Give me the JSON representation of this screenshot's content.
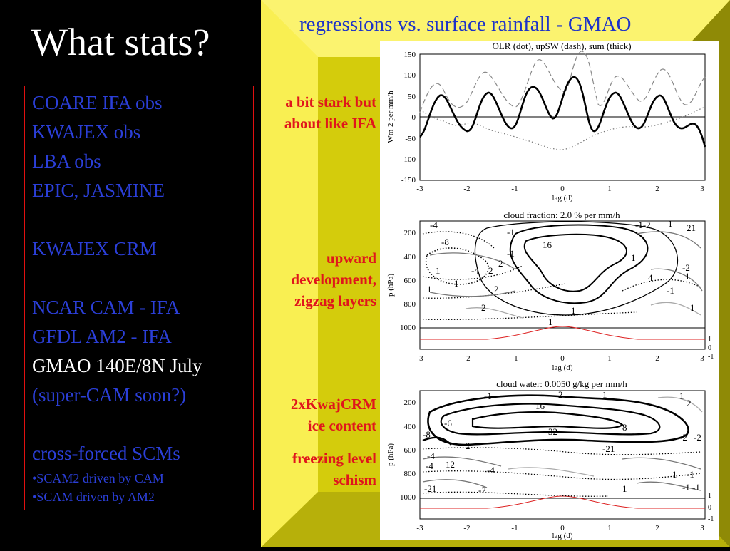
{
  "slide": {
    "title": "What stats?",
    "list": [
      "COARE  IFA obs",
      "KWAJEX obs",
      "LBA obs",
      "EPIC, JASMINE",
      "KWAJEX CRM",
      "NCAR CAM - IFA",
      "GFDL AM2 - IFA",
      "GMAO 140E/8N July",
      "(super-CAM soon?)",
      "cross-forced SCMs",
      "•SCAM2 driven by CAM",
      "•SCAM driven by AM2"
    ],
    "right_title": "regressions vs. surface rainfall - GMAO",
    "notes": {
      "n1_line1": "a bit stark but",
      "n1_line2": "about like IFA",
      "n2_line1": "upward",
      "n2_line2": "development,",
      "n2_line3": "zigzag layers",
      "n3_line1": "2xKwajCRM",
      "n3_line2": "ice content",
      "n4_line1": "freezing level",
      "n4_line2": "schism"
    },
    "colors": {
      "blue_text": "#2b3fd8",
      "red_text": "#e0151c",
      "frame_yellow": "#f6ea3c",
      "frame_olive": "#8f8a06"
    }
  },
  "plots": {
    "p1": {
      "title": "OLR (dot), upSW (dash), sum (thick)",
      "ylabel": "Wm-2 per mm/h",
      "xlabel": "lag (d)",
      "yticks": [
        "150",
        "100",
        "50",
        "0",
        "-50",
        "-100",
        "-150"
      ],
      "xticks": [
        "-3",
        "-2",
        "-1",
        "0",
        "1",
        "2",
        "3"
      ]
    },
    "p2": {
      "title": "cloud fraction: 2.0 % per mm/h",
      "ylabel": "p (hPa)",
      "xlabel": "lag (d)",
      "yticks": [
        "200",
        "400",
        "600",
        "800",
        "1000"
      ],
      "xticks": [
        "-3",
        "-2",
        "-1",
        "0",
        "1",
        "2",
        "3"
      ],
      "sub_ticks": [
        "1",
        "0",
        "-1"
      ],
      "contour_labels": [
        "-4",
        "-1",
        "-8",
        "16",
        "-1",
        "-1-2",
        "1",
        "21",
        "2",
        "1",
        "1",
        "-4",
        "2",
        "-2",
        "1",
        "1",
        "2",
        "1",
        "4",
        "-1",
        "1",
        "2",
        "1",
        "1"
      ]
    },
    "p3": {
      "title": "cloud water: 0.0050 g/kg per mm/h",
      "ylabel": "p (hPa)",
      "xlabel": "lag (d)",
      "yticks": [
        "200",
        "400",
        "600",
        "800",
        "1000"
      ],
      "xticks": [
        "-3",
        "-2",
        "-1",
        "0",
        "1",
        "2",
        "3"
      ],
      "sub_ticks": [
        "1",
        "0",
        "-1"
      ],
      "contour_labels": [
        "-1",
        "2",
        "1",
        "1",
        "2",
        "16",
        "-6",
        "32",
        "8",
        "-2",
        "-4",
        "-8",
        "2",
        "-21",
        "-2",
        "-4",
        "12",
        "1",
        "-1",
        "-4",
        "-1",
        "-21",
        "-2",
        "1",
        "-1"
      ]
    }
  }
}
